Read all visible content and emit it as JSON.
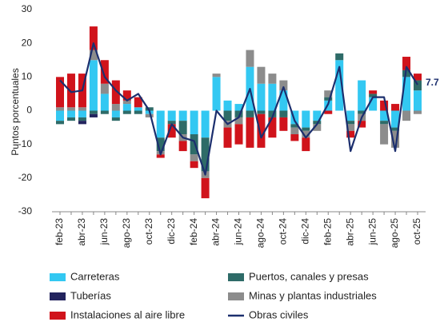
{
  "chart_data": {
    "type": "bar",
    "categories": [
      "feb-23",
      null,
      "abr-23",
      null,
      "jun-23",
      null,
      "ago-23",
      null,
      "oct-23",
      null,
      "dic-23",
      null,
      "feb-24",
      null,
      "abr-24",
      null,
      "jun-24",
      null,
      "ago-24",
      null,
      "oct-24",
      null,
      "dic-24",
      null,
      "feb-25",
      null,
      "abr-25",
      null,
      "jun-25",
      null,
      "ago-25",
      null,
      "oct-25"
    ],
    "y_label": "Puntos porcentuales",
    "ylim": [
      -30,
      30
    ],
    "yticks": [
      -30,
      -20,
      -10,
      0,
      10,
      20,
      30
    ],
    "series": [
      {
        "name": "Carreteras",
        "color": "#33c8f2",
        "values": [
          -3,
          -2,
          -2,
          15,
          5,
          -2,
          2,
          1,
          -1,
          -8,
          -3,
          -3,
          -7,
          -8,
          10,
          3,
          2,
          13,
          8,
          8,
          6,
          -4,
          -5,
          -3,
          3,
          15,
          -3,
          9,
          4,
          -3,
          -5,
          10,
          6
        ]
      },
      {
        "name": "Puertos, canales y presas",
        "color": "#2e6b68",
        "values": [
          -1,
          -1,
          -1,
          -1,
          -1,
          -1,
          -1,
          -1,
          1,
          -4,
          -1,
          -4,
          -6,
          -10,
          0,
          -3,
          -2,
          -2,
          -1,
          -2,
          -2,
          -1,
          -1,
          -1,
          1,
          2,
          -1,
          -1,
          1,
          -1,
          -1,
          2,
          3
        ]
      },
      {
        "name": "Tuberías",
        "color": "#23245e",
        "values": [
          0,
          0,
          -1,
          -1,
          0,
          0,
          0,
          0,
          0,
          0,
          0,
          0,
          0,
          0,
          0,
          0,
          0,
          0,
          0,
          0,
          0,
          0,
          0,
          0,
          0,
          0,
          0,
          0,
          0,
          0,
          0,
          0,
          0
        ]
      },
      {
        "name": "Minas y plantas industriales",
        "color": "#8c8c8c",
        "values": [
          1,
          1,
          1,
          3,
          3,
          2,
          1,
          0,
          -1,
          -1,
          0,
          -2,
          -2,
          -2,
          1,
          -2,
          -2,
          5,
          5,
          3,
          3,
          -2,
          -2,
          -2,
          2,
          0,
          -2,
          -2,
          0,
          -6,
          -5,
          -3,
          -1
        ]
      },
      {
        "name": "Instalaciones al aire libre",
        "color": "#d0131b",
        "values": [
          9,
          10,
          10,
          7,
          7,
          7,
          3,
          3,
          0,
          -1,
          -4,
          -3,
          -2,
          -6,
          0,
          -6,
          -6,
          -9,
          -10,
          -6,
          -4,
          -2,
          -4,
          0,
          -1,
          0,
          -2,
          -2,
          1,
          3,
          2,
          4,
          2
        ]
      },
      {
        "name": "Obras civiles",
        "type": "line",
        "color": "#1c2f6e",
        "values": [
          9,
          5.5,
          6,
          20,
          10,
          6,
          3,
          5,
          0,
          -13,
          -4,
          -8,
          -9,
          -19,
          0,
          -4,
          -2,
          6.5,
          -8,
          -2,
          7,
          -3,
          -8,
          -4,
          2,
          13,
          -12,
          -2,
          4,
          4,
          -12,
          13,
          7.7
        ]
      }
    ]
  }
}
